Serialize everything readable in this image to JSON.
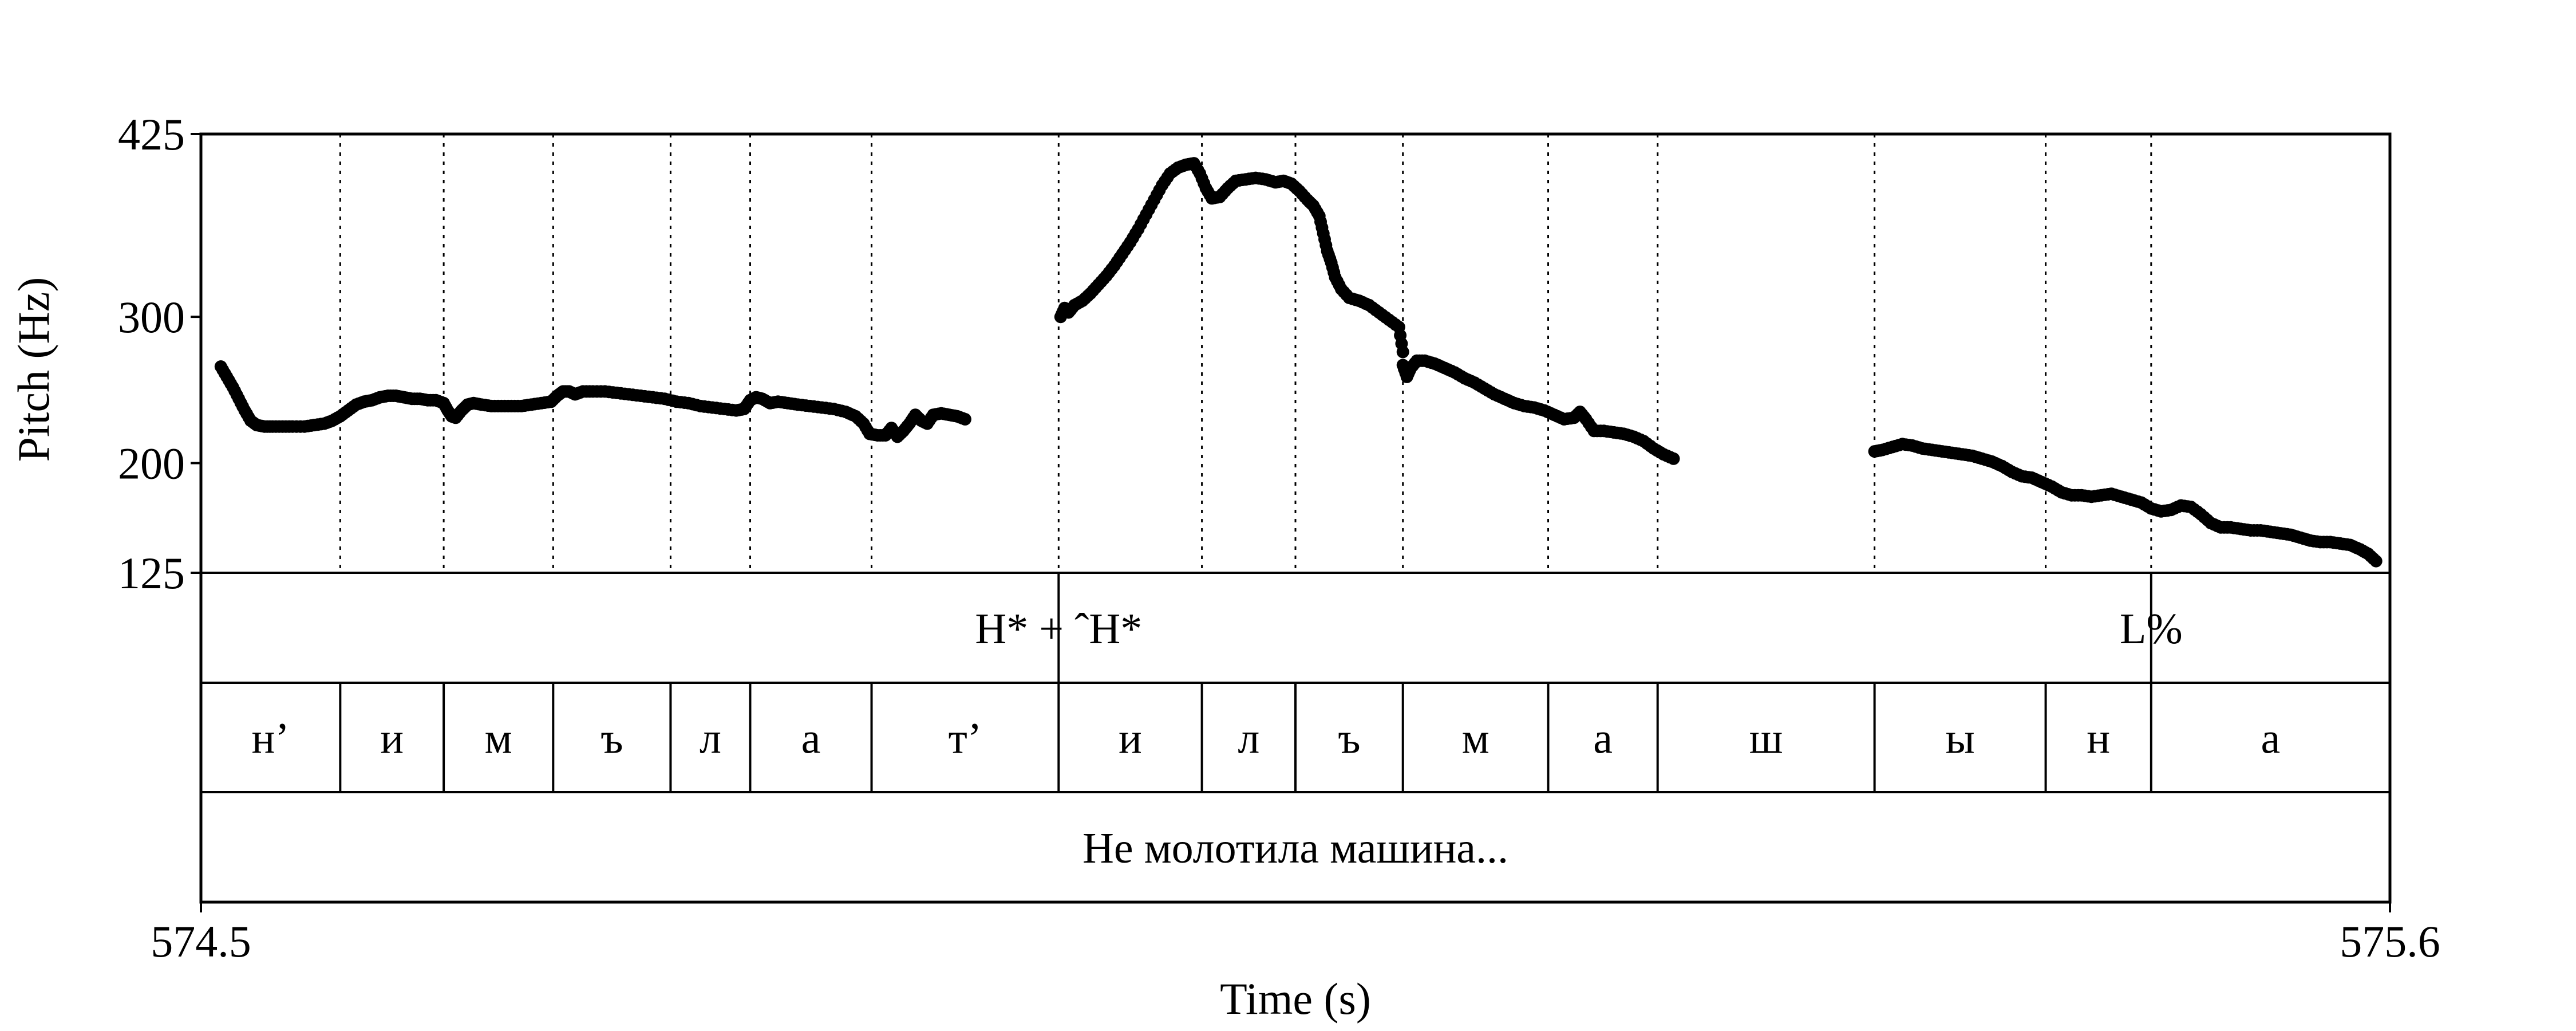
{
  "chart_data": {
    "type": "scatter",
    "title": "",
    "xlabel": "Time (s)",
    "ylabel": "Pitch (Hz)",
    "xlim": [
      574.5,
      575.6
    ],
    "ylim": [
      125,
      425
    ],
    "x_ticks": [
      "574.5",
      "575.6"
    ],
    "y_ticks": [
      425,
      300,
      200,
      125
    ],
    "y_tick_labels": [
      "425",
      "300",
      "200",
      "125"
    ],
    "grid": "dotted vertical lines at segment boundaries",
    "color": "#000000",
    "tones_tier": [
      {
        "time": 574.931,
        "label": "H* + ˆH*"
      },
      {
        "time": 575.48,
        "label": "L%"
      }
    ],
    "segments_tier": [
      {
        "start": 574.5,
        "end": 574.57,
        "label": "н’"
      },
      {
        "start": 574.57,
        "end": 574.622,
        "label": "и"
      },
      {
        "start": 574.622,
        "end": 574.677,
        "label": "м"
      },
      {
        "start": 574.677,
        "end": 574.736,
        "label": "ъ"
      },
      {
        "start": 574.736,
        "end": 574.776,
        "label": "л"
      },
      {
        "start": 574.776,
        "end": 574.837,
        "label": "а"
      },
      {
        "start": 574.837,
        "end": 574.931,
        "label": "т’"
      },
      {
        "start": 574.931,
        "end": 575.003,
        "label": "и"
      },
      {
        "start": 575.003,
        "end": 575.05,
        "label": "л"
      },
      {
        "start": 575.05,
        "end": 575.104,
        "label": "ъ"
      },
      {
        "start": 575.104,
        "end": 575.177,
        "label": "м"
      },
      {
        "start": 575.177,
        "end": 575.232,
        "label": "а"
      },
      {
        "start": 575.232,
        "end": 575.341,
        "label": "ш"
      },
      {
        "start": 575.341,
        "end": 575.427,
        "label": "ы"
      },
      {
        "start": 575.427,
        "end": 575.48,
        "label": "н"
      },
      {
        "start": 575.48,
        "end": 575.6,
        "label": "а"
      }
    ],
    "words_tier": [
      {
        "start": 574.5,
        "end": 575.6,
        "label": "Не молотила машина..."
      }
    ],
    "pitch_segments": [
      [
        [
          574.51,
          266
        ],
        [
          574.513,
          259
        ],
        [
          574.516,
          252
        ],
        [
          574.519,
          244
        ],
        [
          574.522,
          236
        ],
        [
          574.525,
          229
        ],
        [
          574.528,
          226
        ],
        [
          574.532,
          225
        ],
        [
          574.536,
          225
        ],
        [
          574.541,
          225
        ],
        [
          574.546,
          225
        ],
        [
          574.552,
          225
        ],
        [
          574.557,
          226
        ],
        [
          574.562,
          227
        ],
        [
          574.566,
          229
        ],
        [
          574.57,
          232
        ],
        [
          574.574,
          236
        ],
        [
          574.578,
          240
        ],
        [
          574.582,
          242
        ],
        [
          574.586,
          243
        ],
        [
          574.59,
          245
        ],
        [
          574.594,
          246
        ],
        [
          574.598,
          246
        ],
        [
          574.602,
          245
        ],
        [
          574.606,
          244
        ],
        [
          574.61,
          244
        ],
        [
          574.614,
          243
        ],
        [
          574.618,
          243
        ],
        [
          574.622,
          241
        ],
        [
          574.624,
          236
        ],
        [
          574.626,
          232
        ],
        [
          574.628,
          231
        ],
        [
          574.631,
          236
        ],
        [
          574.634,
          240
        ],
        [
          574.637,
          241
        ],
        [
          574.641,
          240
        ],
        [
          574.646,
          239
        ],
        [
          574.651,
          239
        ],
        [
          574.656,
          239
        ],
        [
          574.661,
          239
        ],
        [
          574.666,
          240
        ],
        [
          574.671,
          241
        ],
        [
          574.676,
          242
        ],
        [
          574.679,
          246
        ],
        [
          574.682,
          249
        ],
        [
          574.685,
          249
        ],
        [
          574.688,
          247
        ],
        [
          574.692,
          249
        ],
        [
          574.697,
          249
        ],
        [
          574.703,
          249
        ],
        [
          574.709,
          248
        ],
        [
          574.715,
          247
        ],
        [
          574.721,
          246
        ],
        [
          574.727,
          245
        ],
        [
          574.733,
          244
        ],
        [
          574.739,
          242
        ],
        [
          574.745,
          241
        ],
        [
          574.751,
          239
        ],
        [
          574.757,
          238
        ],
        [
          574.763,
          237
        ],
        [
          574.769,
          236
        ],
        [
          574.773,
          237
        ],
        [
          574.776,
          243
        ],
        [
          574.779,
          245
        ],
        [
          574.782,
          244
        ],
        [
          574.786,
          241
        ],
        [
          574.79,
          242
        ],
        [
          574.795,
          241
        ],
        [
          574.8,
          240
        ],
        [
          574.806,
          239
        ],
        [
          574.812,
          238
        ],
        [
          574.818,
          237
        ],
        [
          574.824,
          235
        ],
        [
          574.829,
          232
        ],
        [
          574.833,
          227
        ],
        [
          574.836,
          220
        ],
        [
          574.84,
          219
        ],
        [
          574.844,
          219
        ],
        [
          574.847,
          224
        ],
        [
          574.85,
          218
        ],
        [
          574.853,
          222
        ],
        [
          574.856,
          227
        ],
        [
          574.859,
          233
        ],
        [
          574.862,
          229
        ],
        [
          574.865,
          227
        ],
        [
          574.868,
          233
        ],
        [
          574.872,
          234
        ],
        [
          574.876,
          233
        ],
        [
          574.88,
          232
        ],
        [
          574.884,
          230
        ]
      ],
      [
        [
          574.932,
          300
        ],
        [
          574.934,
          306
        ],
        [
          574.936,
          303
        ],
        [
          574.939,
          308
        ],
        [
          574.943,
          311
        ],
        [
          574.947,
          316
        ],
        [
          574.951,
          322
        ],
        [
          574.955,
          328
        ],
        [
          574.959,
          335
        ],
        [
          574.963,
          343
        ],
        [
          574.967,
          351
        ],
        [
          574.971,
          360
        ],
        [
          574.975,
          370
        ],
        [
          574.979,
          380
        ],
        [
          574.983,
          390
        ],
        [
          574.987,
          398
        ],
        [
          574.991,
          402
        ],
        [
          574.995,
          404
        ],
        [
          574.999,
          405
        ],
        [
          575.002,
          398
        ],
        [
          575.005,
          388
        ],
        [
          575.008,
          381
        ],
        [
          575.012,
          382
        ],
        [
          575.016,
          388
        ],
        [
          575.02,
          393
        ],
        [
          575.025,
          394
        ],
        [
          575.03,
          395
        ],
        [
          575.035,
          394
        ],
        [
          575.04,
          392
        ],
        [
          575.044,
          393
        ],
        [
          575.048,
          391
        ],
        [
          575.052,
          386
        ],
        [
          575.056,
          380
        ],
        [
          575.059,
          376
        ],
        [
          575.062,
          369
        ],
        [
          575.064,
          357
        ],
        [
          575.066,
          345
        ],
        [
          575.068,
          337
        ],
        [
          575.07,
          327
        ],
        [
          575.073,
          319
        ],
        [
          575.077,
          313
        ],
        [
          575.082,
          311
        ],
        [
          575.087,
          308
        ],
        [
          575.092,
          303
        ],
        [
          575.097,
          298
        ],
        [
          575.102,
          293
        ],
        [
          575.104,
          276
        ]
      ],
      [
        [
          575.104,
          267
        ],
        [
          575.106,
          259
        ],
        [
          575.108,
          265
        ],
        [
          575.111,
          270
        ],
        [
          575.115,
          270
        ],
        [
          575.12,
          268
        ],
        [
          575.125,
          265
        ],
        [
          575.13,
          262
        ],
        [
          575.135,
          258
        ],
        [
          575.14,
          255
        ],
        [
          575.145,
          251
        ],
        [
          575.15,
          247
        ],
        [
          575.155,
          244
        ],
        [
          575.16,
          241
        ],
        [
          575.165,
          239
        ],
        [
          575.17,
          238
        ],
        [
          575.175,
          236
        ],
        [
          575.18,
          233
        ],
        [
          575.185,
          230
        ],
        [
          575.19,
          231
        ],
        [
          575.193,
          235
        ],
        [
          575.196,
          230
        ],
        [
          575.2,
          222
        ],
        [
          575.205,
          222
        ],
        [
          575.21,
          221
        ],
        [
          575.215,
          220
        ],
        [
          575.22,
          218
        ],
        [
          575.225,
          215
        ],
        [
          575.23,
          210
        ],
        [
          575.235,
          206
        ],
        [
          575.24,
          203
        ]
      ],
      [
        [
          575.341,
          208
        ],
        [
          575.345,
          209
        ],
        [
          575.35,
          211
        ],
        [
          575.355,
          213
        ],
        [
          575.36,
          212
        ],
        [
          575.365,
          210
        ],
        [
          575.37,
          209
        ],
        [
          575.375,
          208
        ],
        [
          575.38,
          207
        ],
        [
          575.385,
          206
        ],
        [
          575.39,
          205
        ],
        [
          575.395,
          203
        ],
        [
          575.4,
          201
        ],
        [
          575.405,
          198
        ],
        [
          575.41,
          194
        ],
        [
          575.415,
          191
        ],
        [
          575.42,
          190
        ],
        [
          575.425,
          187
        ],
        [
          575.43,
          184
        ],
        [
          575.435,
          180
        ],
        [
          575.44,
          178
        ],
        [
          575.445,
          178
        ],
        [
          575.45,
          177
        ],
        [
          575.455,
          178
        ],
        [
          575.46,
          179
        ],
        [
          575.465,
          177
        ],
        [
          575.47,
          175
        ],
        [
          575.475,
          173
        ],
        [
          575.48,
          169
        ],
        [
          575.485,
          167
        ],
        [
          575.49,
          168
        ],
        [
          575.495,
          171
        ],
        [
          575.5,
          170
        ],
        [
          575.505,
          165
        ],
        [
          575.51,
          159
        ],
        [
          575.515,
          156
        ],
        [
          575.52,
          156
        ],
        [
          575.525,
          155
        ],
        [
          575.53,
          154
        ],
        [
          575.535,
          154
        ],
        [
          575.54,
          153
        ],
        [
          575.545,
          152
        ],
        [
          575.55,
          151
        ],
        [
          575.555,
          149
        ],
        [
          575.56,
          147
        ],
        [
          575.565,
          146
        ],
        [
          575.57,
          146
        ],
        [
          575.575,
          145
        ],
        [
          575.58,
          144
        ],
        [
          575.585,
          141
        ],
        [
          575.589,
          138
        ],
        [
          575.593,
          133
        ]
      ]
    ]
  }
}
